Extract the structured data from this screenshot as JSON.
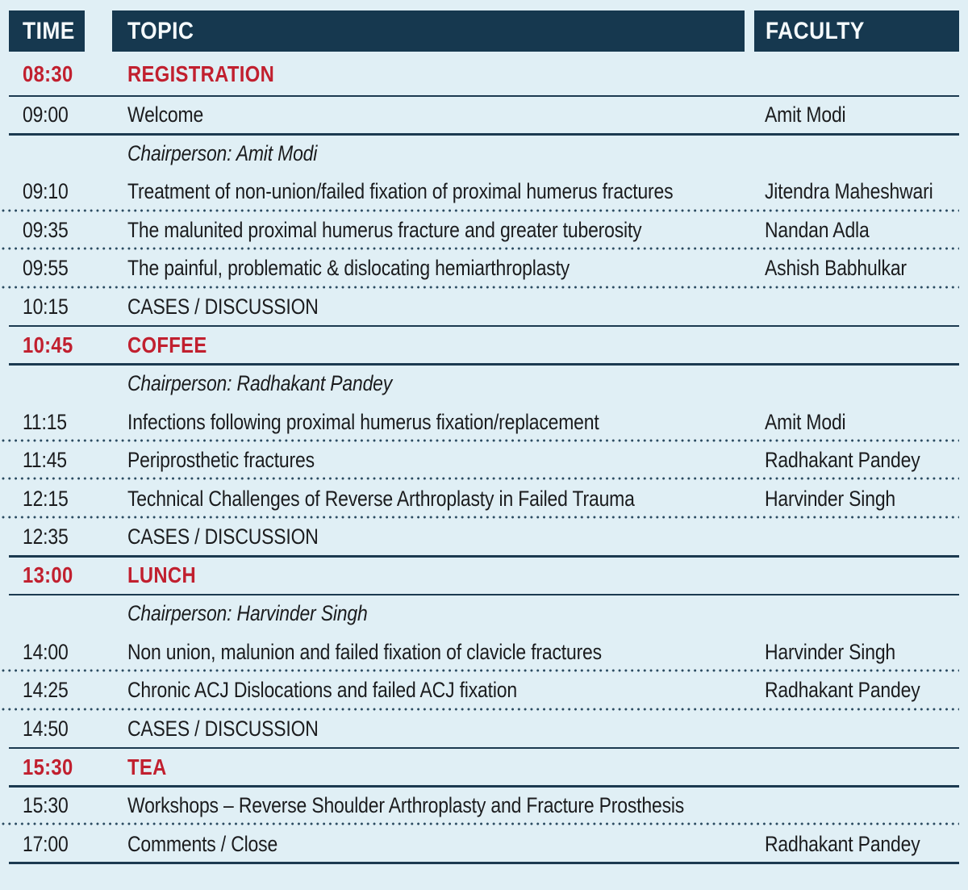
{
  "colors": {
    "background": "#e0eff5",
    "header_background": "#16384f",
    "header_text": "#f5fafc",
    "accent_red": "#c1202f",
    "body_text": "#1b1c1e",
    "separator_line": "#1c3a50",
    "separator_dot": "#2a4a60"
  },
  "table": {
    "columns": [
      {
        "label": "TIME"
      },
      {
        "label": "TOPIC"
      },
      {
        "label": "FACULTY"
      }
    ],
    "rows": [
      {
        "type": "session",
        "time": "08:30",
        "topic": "REGISTRATION",
        "faculty": "",
        "sep": "solid"
      },
      {
        "type": "talk",
        "time": "09:00",
        "topic": "Welcome",
        "faculty": "Amit Modi",
        "sep": "solid"
      },
      {
        "type": "chair",
        "time": "",
        "topic": "Chairperson: Amit Modi",
        "faculty": "",
        "sep": "none"
      },
      {
        "type": "talk",
        "time": "09:10",
        "topic": "Treatment of non-union/failed fixation of proximal humerus fractures",
        "faculty": "Jitendra Maheshwari",
        "sep": "dotted"
      },
      {
        "type": "talk",
        "time": "09:35",
        "topic": "The malunited proximal humerus fracture and greater tuberosity",
        "faculty": "Nandan Adla",
        "sep": "dotted"
      },
      {
        "type": "talk",
        "time": "09:55",
        "topic": "The painful, problematic & dislocating hemiarthroplasty",
        "faculty": "Ashish Babhulkar",
        "sep": "dotted"
      },
      {
        "type": "talk",
        "time": "10:15",
        "topic": "CASES / DISCUSSION",
        "faculty": "",
        "sep": "solid"
      },
      {
        "type": "session",
        "time": "10:45",
        "topic": "COFFEE",
        "faculty": "",
        "sep": "solid"
      },
      {
        "type": "chair",
        "time": "",
        "topic": "Chairperson: Radhakant Pandey",
        "faculty": "",
        "sep": "none"
      },
      {
        "type": "talk",
        "time": "11:15",
        "topic": "Infections following proximal humerus fixation/replacement",
        "faculty": "Amit Modi",
        "sep": "dotted"
      },
      {
        "type": "talk",
        "time": "11:45",
        "topic": "Periprosthetic fractures",
        "faculty": "Radhakant Pandey",
        "sep": "dotted"
      },
      {
        "type": "talk",
        "time": "12:15",
        "topic": "Technical Challenges of Reverse Arthroplasty in Failed Trauma",
        "faculty": "Harvinder Singh",
        "sep": "dotted"
      },
      {
        "type": "talk",
        "time": "12:35",
        "topic": "CASES / DISCUSSION",
        "faculty": "",
        "sep": "solid"
      },
      {
        "type": "session",
        "time": "13:00",
        "topic": "LUNCH",
        "faculty": "",
        "sep": "solid"
      },
      {
        "type": "chair",
        "time": "",
        "topic": "Chairperson: Harvinder Singh",
        "faculty": "",
        "sep": "none"
      },
      {
        "type": "talk",
        "time": "14:00",
        "topic": "Non union, malunion and failed fixation of clavicle fractures",
        "faculty": "Harvinder Singh",
        "sep": "dotted"
      },
      {
        "type": "talk",
        "time": "14:25",
        "topic": "Chronic ACJ Dislocations and failed ACJ fixation",
        "faculty": "Radhakant Pandey",
        "sep": "dotted"
      },
      {
        "type": "talk",
        "time": "14:50",
        "topic": "CASES / DISCUSSION",
        "faculty": "",
        "sep": "solid"
      },
      {
        "type": "session",
        "time": "15:30",
        "topic": "TEA",
        "faculty": "",
        "sep": "solid"
      },
      {
        "type": "talk",
        "time": "15:30",
        "topic": "Workshops – Reverse Shoulder Arthroplasty and Fracture Prosthesis",
        "faculty": "",
        "sep": "dotted"
      },
      {
        "type": "talk",
        "time": "17:00",
        "topic": "Comments / Close",
        "faculty": "Radhakant Pandey",
        "sep": "solid"
      }
    ]
  }
}
